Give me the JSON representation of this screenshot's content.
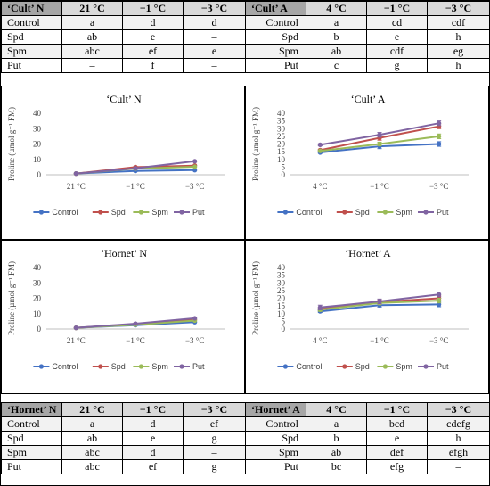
{
  "colors": {
    "Control": "#4472C4",
    "Spd": "#C0504D",
    "Spm": "#9BBB59",
    "Put": "#8064A2"
  },
  "top_table": {
    "left": {
      "genotype": "‘Cult’ N",
      "temps": [
        "21 °C",
        "−1 °C",
        "−3 °C"
      ],
      "rows": [
        {
          "label": "Control",
          "cells": [
            "a",
            "d",
            "d"
          ]
        },
        {
          "label": "Spd",
          "cells": [
            "ab",
            "e",
            "–"
          ]
        },
        {
          "label": "Spm",
          "cells": [
            "abc",
            "ef",
            "e"
          ]
        },
        {
          "label": "Put",
          "cells": [
            "–",
            "f",
            "–"
          ]
        }
      ]
    },
    "right": {
      "genotype": "‘Cult’ A",
      "temps": [
        "4 °C",
        "−1 °C",
        "−3 °C"
      ],
      "rows": [
        {
          "label": "Control",
          "cells": [
            "a",
            "cd",
            "cdf"
          ]
        },
        {
          "label": "Spd",
          "cells": [
            "b",
            "e",
            "h"
          ]
        },
        {
          "label": "Spm",
          "cells": [
            "ab",
            "cdf",
            "eg"
          ]
        },
        {
          "label": "Put",
          "cells": [
            "c",
            "g",
            "h"
          ]
        }
      ]
    }
  },
  "bottom_table": {
    "left": {
      "genotype": "‘Hornet’ N",
      "temps": [
        "21 °C",
        "−1 °C",
        "−3 °C"
      ],
      "rows": [
        {
          "label": "Control",
          "cells": [
            "a",
            "d",
            "ef"
          ]
        },
        {
          "label": "Spd",
          "cells": [
            "ab",
            "e",
            "g"
          ]
        },
        {
          "label": "Spm",
          "cells": [
            "abc",
            "d",
            "–"
          ]
        },
        {
          "label": "Put",
          "cells": [
            "abc",
            "ef",
            "g"
          ]
        }
      ]
    },
    "right": {
      "genotype": "‘Hornet’ A",
      "temps": [
        "4 °C",
        "−1 °C",
        "−3 °C"
      ],
      "rows": [
        {
          "label": "Control",
          "cells": [
            "a",
            "bcd",
            "cdefg"
          ]
        },
        {
          "label": "Spd",
          "cells": [
            "b",
            "e",
            "h"
          ]
        },
        {
          "label": "Spm",
          "cells": [
            "ab",
            "def",
            "efgh"
          ]
        },
        {
          "label": "Put",
          "cells": [
            "bc",
            "efg",
            "–"
          ]
        }
      ]
    }
  },
  "chart_data": [
    {
      "type": "line",
      "title": "‘Cult’ N",
      "xlabel": "",
      "ylabel": "Proline (µmol g⁻¹ FM)",
      "categories": [
        "21 °C",
        "−1 °C",
        "−3 °C"
      ],
      "ylim": [
        0,
        40
      ],
      "yticks": [
        0,
        10,
        20,
        30,
        40
      ],
      "grid": false,
      "legend": "bottom",
      "error_bars": false,
      "series": [
        {
          "name": "Control",
          "values": [
            0.8,
            2.5,
            3.0
          ]
        },
        {
          "name": "Spd",
          "values": [
            0.8,
            5.0,
            6.0
          ]
        },
        {
          "name": "Spm",
          "values": [
            0.8,
            4.0,
            5.2
          ]
        },
        {
          "name": "Put",
          "values": [
            0.8,
            4.2,
            8.8
          ]
        }
      ]
    },
    {
      "type": "line",
      "title": "‘Cult’ A",
      "xlabel": "",
      "ylabel": "Proline (µmol g⁻¹ FM)",
      "categories": [
        "4 °C",
        "−1 °C",
        "−3 °C"
      ],
      "ylim": [
        0,
        40
      ],
      "yticks": [
        0,
        5,
        10,
        15,
        20,
        25,
        30,
        35,
        40
      ],
      "grid": false,
      "legend": "bottom",
      "error_bars": true,
      "series": [
        {
          "name": "Control",
          "values": [
            14.5,
            18.5,
            20.0
          ],
          "errors": [
            0.5,
            1.5,
            1.5
          ]
        },
        {
          "name": "Spd",
          "values": [
            16.0,
            24.0,
            31.5
          ],
          "errors": [
            0.6,
            1.5,
            1.5
          ]
        },
        {
          "name": "Spm",
          "values": [
            15.5,
            20.0,
            25.0
          ],
          "errors": [
            0.5,
            1.2,
            1.5
          ]
        },
        {
          "name": "Put",
          "values": [
            19.5,
            26.0,
            33.5
          ],
          "errors": [
            0.6,
            1.5,
            1.5
          ]
        }
      ]
    },
    {
      "type": "line",
      "title": "‘Hornet’ N",
      "xlabel": "",
      "ylabel": "Proline (µmol g⁻¹ FM)",
      "categories": [
        "21 °C",
        "−1 °C",
        "−3 °C"
      ],
      "ylim": [
        0,
        40
      ],
      "yticks": [
        0,
        10,
        20,
        30,
        40
      ],
      "grid": false,
      "legend": "bottom",
      "error_bars": false,
      "series": [
        {
          "name": "Control",
          "values": [
            0.8,
            2.5,
            4.5
          ]
        },
        {
          "name": "Spd",
          "values": [
            0.8,
            3.2,
            6.2
          ]
        },
        {
          "name": "Spm",
          "values": [
            0.8,
            2.8,
            5.5
          ]
        },
        {
          "name": "Put",
          "values": [
            0.8,
            3.5,
            7.0
          ]
        }
      ]
    },
    {
      "type": "line",
      "title": "‘Hornet’ A",
      "xlabel": "",
      "ylabel": "Proline (µmol g⁻¹ FM)",
      "categories": [
        "4 °C",
        "−1 °C",
        "−3 °C"
      ],
      "ylim": [
        0,
        40
      ],
      "yticks": [
        0,
        5,
        10,
        15,
        20,
        25,
        30,
        35,
        40
      ],
      "grid": false,
      "legend": "bottom",
      "error_bars": true,
      "series": [
        {
          "name": "Control",
          "values": [
            11.5,
            15.5,
            16.0
          ],
          "errors": [
            0.8,
            1.2,
            1.5
          ]
        },
        {
          "name": "Spd",
          "values": [
            13.0,
            17.5,
            20.0
          ],
          "errors": [
            1.0,
            1.5,
            1.5
          ]
        },
        {
          "name": "Spm",
          "values": [
            12.5,
            17.0,
            18.5
          ],
          "errors": [
            1.0,
            1.2,
            1.5
          ]
        },
        {
          "name": "Put",
          "values": [
            14.0,
            18.0,
            22.5
          ],
          "errors": [
            1.5,
            1.5,
            1.5
          ]
        }
      ]
    }
  ]
}
